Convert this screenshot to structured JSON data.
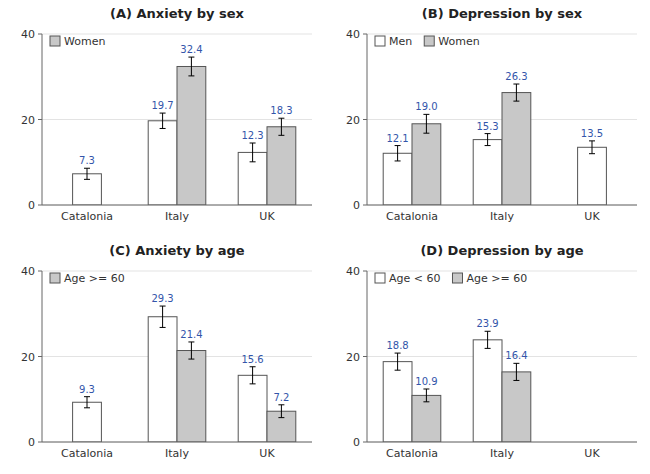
{
  "chart_data": [
    {
      "type": "bar",
      "title": "(A) Anxiety by sex",
      "categories": [
        "Catalonia",
        "Italy",
        "UK"
      ],
      "series": [
        {
          "color": "#ffffff",
          "values": [
            7.3,
            19.7,
            12.3
          ],
          "errors": [
            1.3,
            1.8,
            2.2
          ]
        },
        {
          "name": "Women",
          "color": "#c8c8c8",
          "values": [
            null,
            32.4,
            18.3
          ],
          "errors": [
            null,
            2.2,
            2.0
          ]
        }
      ],
      "ylim": [
        0,
        40
      ],
      "yticks": [
        0,
        20,
        40
      ],
      "grid": true,
      "legend": "upper left",
      "data_labels": true
    },
    {
      "type": "bar",
      "title": "(B) Depression by sex",
      "categories": [
        "Catalonia",
        "Italy",
        "UK"
      ],
      "series": [
        {
          "name": "Men",
          "color": "#ffffff",
          "values": [
            12.1,
            15.3,
            13.5
          ],
          "errors": [
            1.8,
            1.4,
            1.5
          ]
        },
        {
          "name": "Women",
          "color": "#c8c8c8",
          "values": [
            19.0,
            26.3,
            null
          ],
          "value_labels": [
            "19.0",
            "26.3",
            null
          ],
          "errors": [
            2.2,
            2.0,
            null
          ]
        }
      ],
      "ylim": [
        0,
        40
      ],
      "yticks": [
        0,
        20,
        40
      ],
      "grid": true,
      "legend": "upper left",
      "data_labels": true
    },
    {
      "type": "bar",
      "title": "(C) Anxiety by age",
      "categories": [
        "Catalonia",
        "Italy",
        "UK"
      ],
      "series": [
        {
          "color": "#ffffff",
          "values": [
            9.3,
            29.3,
            15.6
          ],
          "errors": [
            1.3,
            2.5,
            2.0
          ]
        },
        {
          "name": "Age >= 60",
          "color": "#c8c8c8",
          "values": [
            null,
            21.4,
            7.2
          ],
          "errors": [
            null,
            2.0,
            1.5
          ]
        }
      ],
      "ylim": [
        0,
        40
      ],
      "yticks": [
        0,
        20,
        40
      ],
      "grid": true,
      "legend": "upper left",
      "data_labels": true
    },
    {
      "type": "bar",
      "title": "(D) Depression by age",
      "categories": [
        "Catalonia",
        "Italy",
        "UK"
      ],
      "series": [
        {
          "name": "Age < 60",
          "color": "#ffffff",
          "values": [
            18.8,
            23.9,
            null
          ],
          "errors": [
            2.0,
            2.0,
            null
          ]
        },
        {
          "name": "Age >= 60",
          "color": "#c8c8c8",
          "values": [
            10.9,
            16.4,
            null
          ],
          "errors": [
            1.5,
            2.0,
            null
          ]
        }
      ],
      "ylim": [
        0,
        40
      ],
      "yticks": [
        0,
        20,
        40
      ],
      "grid": true,
      "legend": "upper left",
      "data_labels": true
    }
  ]
}
